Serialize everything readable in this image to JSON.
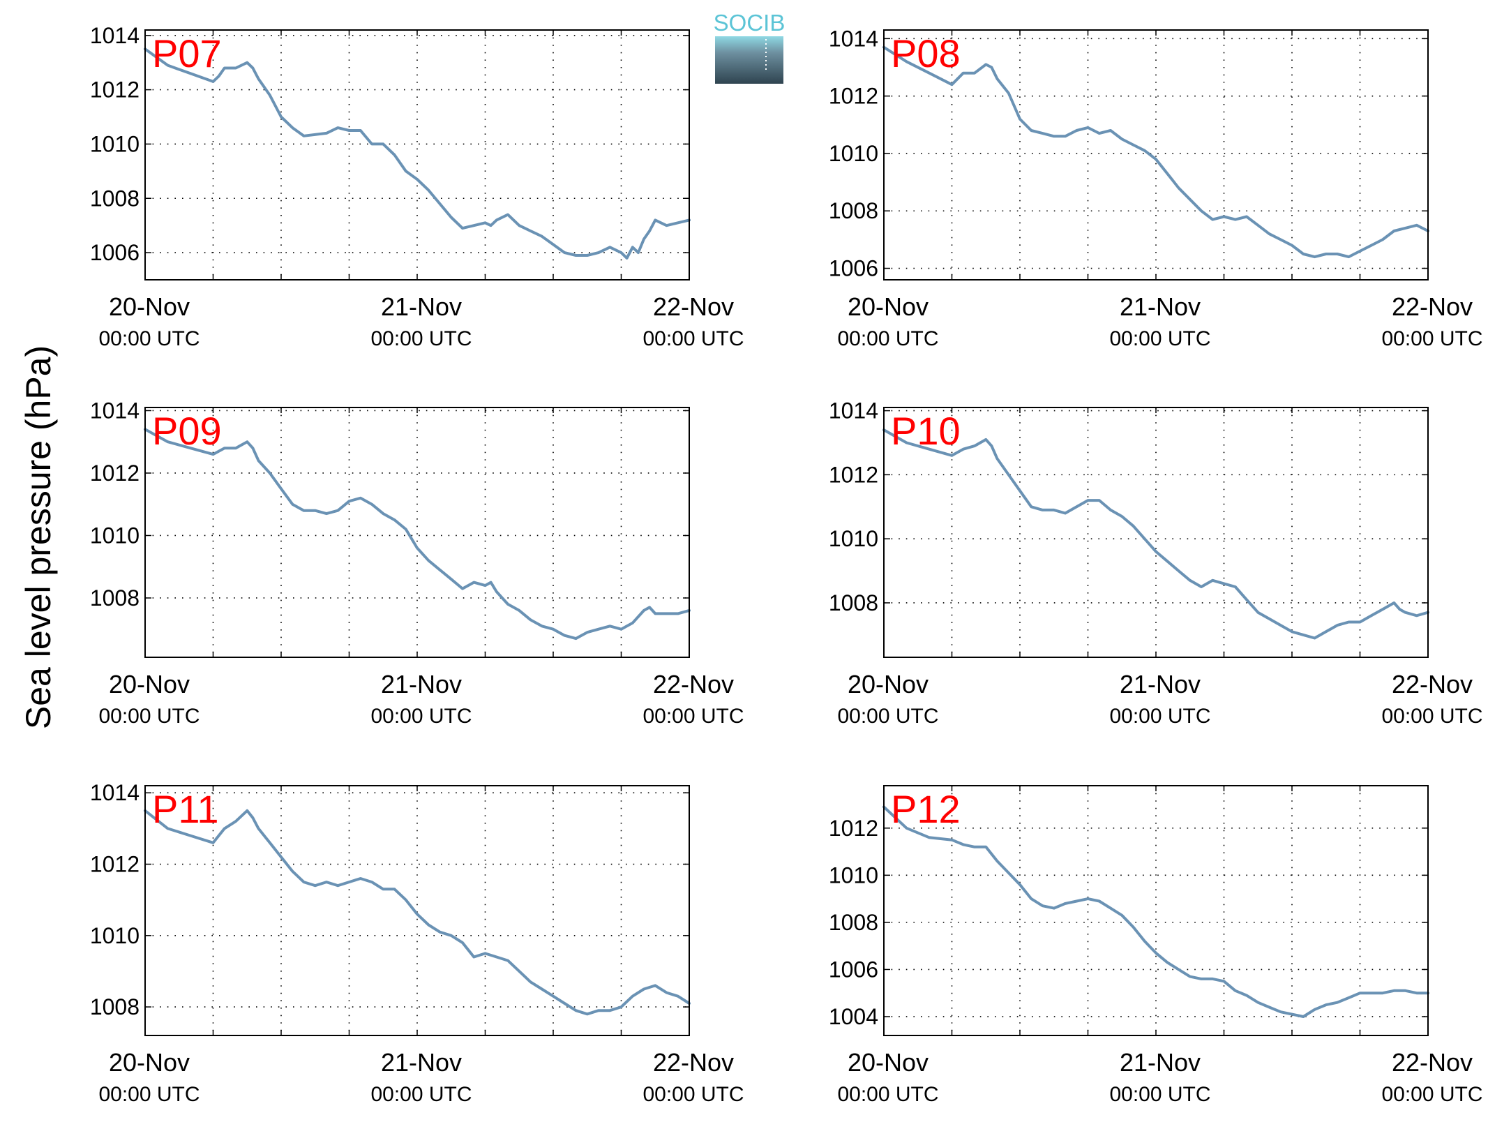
{
  "figure": {
    "ylabel": "Sea level pressure (hPa)",
    "logo_text": "SOCIB",
    "colors": {
      "line": "#6a92b4",
      "panel_label": "#ff0000",
      "axis": "#000000",
      "grid": "#000000",
      "logo_text": "#5bc4d6",
      "logo_top": "#8fd9e4",
      "logo_bottom": "#2f4450"
    }
  },
  "chart_data": [
    {
      "type": "line",
      "label": "P07",
      "xlim": [
        0,
        48
      ],
      "ylim": [
        1005,
        1014.2
      ],
      "yticks": [
        1006,
        1008,
        1010,
        1012,
        1014
      ],
      "xticks": [
        {
          "x": 0,
          "date": "20-Nov",
          "time": "00:00 UTC"
        },
        {
          "x": 24,
          "date": "21-Nov",
          "time": "00:00 UTC"
        },
        {
          "x": 48,
          "date": "22-Nov",
          "time": "00:00 UTC"
        }
      ],
      "grid": true,
      "x": [
        0,
        2,
        4,
        6,
        6.5,
        7,
        8,
        9,
        9.5,
        10,
        11,
        12,
        13,
        14,
        16,
        17,
        18,
        19,
        20,
        21,
        22,
        23,
        24,
        25,
        26,
        27,
        28,
        29,
        30,
        30.5,
        31,
        32,
        33,
        33.5,
        34,
        35,
        36,
        37,
        38,
        39,
        40,
        41,
        42,
        42.5,
        43,
        43.5,
        44,
        44.5,
        45,
        46,
        47,
        48
      ],
      "values": [
        1013.5,
        1012.9,
        1012.6,
        1012.3,
        1012.5,
        1012.8,
        1012.8,
        1013.0,
        1012.8,
        1012.4,
        1011.8,
        1011.0,
        1010.6,
        1010.3,
        1010.4,
        1010.6,
        1010.5,
        1010.5,
        1010.0,
        1010.0,
        1009.6,
        1009.0,
        1008.7,
        1008.3,
        1007.8,
        1007.3,
        1006.9,
        1007.0,
        1007.1,
        1007.0,
        1007.2,
        1007.4,
        1007.0,
        1006.9,
        1006.8,
        1006.6,
        1006.3,
        1006.0,
        1005.9,
        1005.9,
        1006.0,
        1006.2,
        1006.0,
        1005.8,
        1006.2,
        1006.0,
        1006.5,
        1006.8,
        1007.2,
        1007.0,
        1007.1,
        1007.2
      ]
    },
    {
      "type": "line",
      "label": "P08",
      "xlim": [
        0,
        48
      ],
      "ylim": [
        1005.6,
        1014.3
      ],
      "yticks": [
        1006,
        1008,
        1010,
        1012,
        1014
      ],
      "xticks": [
        {
          "x": 0,
          "date": "20-Nov",
          "time": "00:00 UTC"
        },
        {
          "x": 24,
          "date": "21-Nov",
          "time": "00:00 UTC"
        },
        {
          "x": 48,
          "date": "22-Nov",
          "time": "00:00 UTC"
        }
      ],
      "grid": true,
      "x": [
        0,
        2,
        4,
        6,
        7,
        8,
        9,
        9.5,
        10,
        11,
        12,
        13,
        14,
        15,
        16,
        17,
        18,
        19,
        20,
        21,
        22,
        23,
        24,
        25,
        26,
        27,
        28,
        29,
        30,
        31,
        32,
        33,
        34,
        35,
        36,
        37,
        38,
        39,
        40,
        41,
        42,
        43,
        44,
        45,
        46,
        47,
        48
      ],
      "values": [
        1013.7,
        1013.2,
        1012.8,
        1012.4,
        1012.8,
        1012.8,
        1013.1,
        1013.0,
        1012.6,
        1012.1,
        1011.2,
        1010.8,
        1010.7,
        1010.6,
        1010.6,
        1010.8,
        1010.9,
        1010.7,
        1010.8,
        1010.5,
        1010.3,
        1010.1,
        1009.8,
        1009.3,
        1008.8,
        1008.4,
        1008.0,
        1007.7,
        1007.8,
        1007.7,
        1007.8,
        1007.5,
        1007.2,
        1007.0,
        1006.8,
        1006.5,
        1006.4,
        1006.5,
        1006.5,
        1006.4,
        1006.6,
        1006.8,
        1007.0,
        1007.3,
        1007.4,
        1007.5,
        1007.3
      ]
    },
    {
      "type": "line",
      "label": "P09",
      "xlim": [
        0,
        48
      ],
      "ylim": [
        1006.1,
        1014.1
      ],
      "yticks": [
        1008,
        1010,
        1012,
        1014
      ],
      "xticks": [
        {
          "x": 0,
          "date": "20-Nov",
          "time": "00:00 UTC"
        },
        {
          "x": 24,
          "date": "21-Nov",
          "time": "00:00 UTC"
        },
        {
          "x": 48,
          "date": "22-Nov",
          "time": "00:00 UTC"
        }
      ],
      "grid": true,
      "x": [
        0,
        2,
        4,
        6,
        7,
        8,
        9,
        9.5,
        10,
        11,
        12,
        13,
        14,
        15,
        16,
        17,
        18,
        19,
        20,
        21,
        22,
        23,
        24,
        25,
        26,
        27,
        28,
        29,
        30,
        30.5,
        31,
        32,
        33,
        34,
        35,
        36,
        37,
        38,
        39,
        40,
        41,
        42,
        43,
        44,
        44.5,
        45,
        46,
        47,
        48
      ],
      "values": [
        1013.4,
        1013.0,
        1012.8,
        1012.6,
        1012.8,
        1012.8,
        1013.0,
        1012.8,
        1012.4,
        1012.0,
        1011.5,
        1011.0,
        1010.8,
        1010.8,
        1010.7,
        1010.8,
        1011.1,
        1011.2,
        1011.0,
        1010.7,
        1010.5,
        1010.2,
        1009.6,
        1009.2,
        1008.9,
        1008.6,
        1008.3,
        1008.5,
        1008.4,
        1008.5,
        1008.2,
        1007.8,
        1007.6,
        1007.3,
        1007.1,
        1007.0,
        1006.8,
        1006.7,
        1006.9,
        1007.0,
        1007.1,
        1007.0,
        1007.2,
        1007.6,
        1007.7,
        1007.5,
        1007.5,
        1007.5,
        1007.6
      ]
    },
    {
      "type": "line",
      "label": "P10",
      "xlim": [
        0,
        48
      ],
      "ylim": [
        1006.3,
        1014.1
      ],
      "yticks": [
        1008,
        1010,
        1012,
        1014
      ],
      "xticks": [
        {
          "x": 0,
          "date": "20-Nov",
          "time": "00:00 UTC"
        },
        {
          "x": 24,
          "date": "21-Nov",
          "time": "00:00 UTC"
        },
        {
          "x": 48,
          "date": "22-Nov",
          "time": "00:00 UTC"
        }
      ],
      "grid": true,
      "x": [
        0,
        2,
        4,
        6,
        7,
        8,
        9,
        9.5,
        10,
        11,
        12,
        13,
        14,
        15,
        16,
        17,
        18,
        19,
        20,
        21,
        22,
        23,
        24,
        25,
        26,
        27,
        28,
        29,
        30,
        31,
        32,
        33,
        34,
        35,
        36,
        37,
        38,
        39,
        40,
        41,
        42,
        43,
        44,
        45,
        45.5,
        46,
        47,
        48
      ],
      "values": [
        1013.4,
        1013.0,
        1012.8,
        1012.6,
        1012.8,
        1012.9,
        1013.1,
        1012.9,
        1012.5,
        1012.0,
        1011.5,
        1011.0,
        1010.9,
        1010.9,
        1010.8,
        1011.0,
        1011.2,
        1011.2,
        1010.9,
        1010.7,
        1010.4,
        1010.0,
        1009.6,
        1009.3,
        1009.0,
        1008.7,
        1008.5,
        1008.7,
        1008.6,
        1008.5,
        1008.1,
        1007.7,
        1007.5,
        1007.3,
        1007.1,
        1007.0,
        1006.9,
        1007.1,
        1007.3,
        1007.4,
        1007.4,
        1007.6,
        1007.8,
        1008.0,
        1007.8,
        1007.7,
        1007.6,
        1007.7
      ]
    },
    {
      "type": "line",
      "label": "P11",
      "xlim": [
        0,
        48
      ],
      "ylim": [
        1007.2,
        1014.2
      ],
      "yticks": [
        1008,
        1010,
        1012,
        1014
      ],
      "xticks": [
        {
          "x": 0,
          "date": "20-Nov",
          "time": "00:00 UTC"
        },
        {
          "x": 24,
          "date": "21-Nov",
          "time": "00:00 UTC"
        },
        {
          "x": 48,
          "date": "22-Nov",
          "time": "00:00 UTC"
        }
      ],
      "grid": true,
      "x": [
        0,
        2,
        4,
        6,
        7,
        8,
        9,
        9.5,
        10,
        11,
        12,
        13,
        14,
        15,
        16,
        17,
        18,
        19,
        20,
        21,
        22,
        23,
        24,
        25,
        26,
        27,
        28,
        29,
        30,
        31,
        32,
        33,
        34,
        35,
        36,
        37,
        38,
        39,
        40,
        41,
        42,
        43,
        44,
        45,
        46,
        47,
        48
      ],
      "values": [
        1013.5,
        1013.0,
        1012.8,
        1012.6,
        1013.0,
        1013.2,
        1013.5,
        1013.3,
        1013.0,
        1012.6,
        1012.2,
        1011.8,
        1011.5,
        1011.4,
        1011.5,
        1011.4,
        1011.5,
        1011.6,
        1011.5,
        1011.3,
        1011.3,
        1011.0,
        1010.6,
        1010.3,
        1010.1,
        1010.0,
        1009.8,
        1009.4,
        1009.5,
        1009.4,
        1009.3,
        1009.0,
        1008.7,
        1008.5,
        1008.3,
        1008.1,
        1007.9,
        1007.8,
        1007.9,
        1007.9,
        1008.0,
        1008.3,
        1008.5,
        1008.6,
        1008.4,
        1008.3,
        1008.1
      ]
    },
    {
      "type": "line",
      "label": "P12",
      "xlim": [
        0,
        48
      ],
      "ylim": [
        1003.2,
        1013.8
      ],
      "yticks": [
        1004,
        1006,
        1008,
        1010,
        1012
      ],
      "xticks": [
        {
          "x": 0,
          "date": "20-Nov",
          "time": "00:00 UTC"
        },
        {
          "x": 24,
          "date": "21-Nov",
          "time": "00:00 UTC"
        },
        {
          "x": 48,
          "date": "22-Nov",
          "time": "00:00 UTC"
        }
      ],
      "grid": true,
      "x": [
        0,
        2,
        4,
        6,
        7,
        8,
        9,
        10,
        11,
        12,
        13,
        14,
        15,
        16,
        17,
        18,
        19,
        20,
        21,
        22,
        23,
        24,
        25,
        26,
        27,
        28,
        29,
        30,
        31,
        32,
        33,
        34,
        35,
        36,
        37,
        38,
        39,
        40,
        41,
        42,
        43,
        44,
        45,
        46,
        47,
        48
      ],
      "values": [
        1012.9,
        1012.0,
        1011.6,
        1011.5,
        1011.3,
        1011.2,
        1011.2,
        1010.6,
        1010.1,
        1009.6,
        1009.0,
        1008.7,
        1008.6,
        1008.8,
        1008.9,
        1009.0,
        1008.9,
        1008.6,
        1008.3,
        1007.8,
        1007.2,
        1006.7,
        1006.3,
        1006.0,
        1005.7,
        1005.6,
        1005.6,
        1005.5,
        1005.1,
        1004.9,
        1004.6,
        1004.4,
        1004.2,
        1004.1,
        1004.0,
        1004.3,
        1004.5,
        1004.6,
        1004.8,
        1005.0,
        1005.0,
        1005.0,
        1005.1,
        1005.1,
        1005.0,
        1005.0
      ]
    }
  ]
}
